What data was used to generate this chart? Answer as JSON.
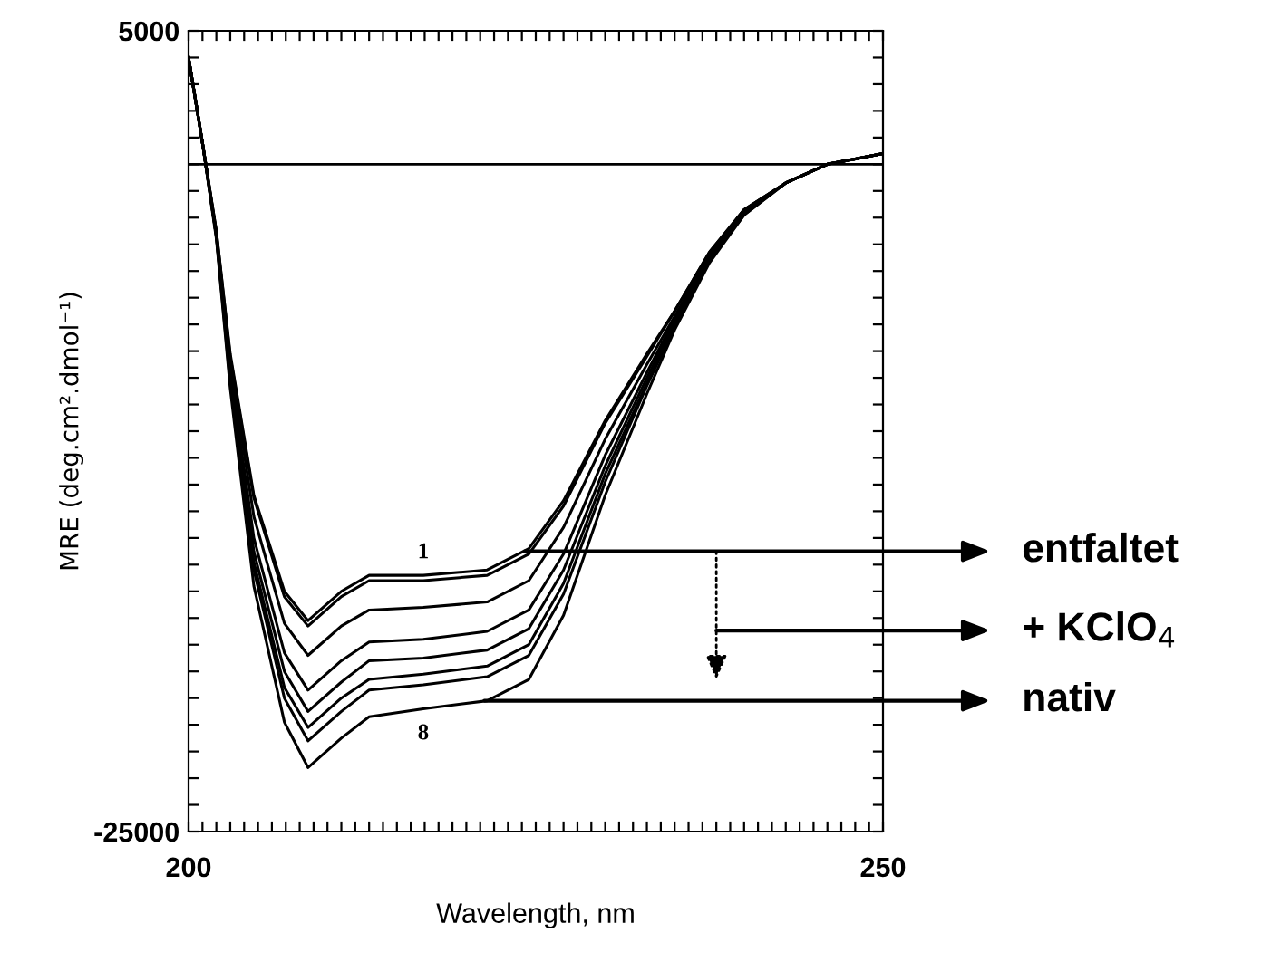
{
  "chart_data": {
    "type": "line",
    "xlabel": "Wavelength, nm",
    "ylabel": "MRE (deg.cm².dmol⁻¹)",
    "x": [
      200,
      201,
      202,
      203,
      204.7,
      206.9,
      208.6,
      211,
      213,
      216.9,
      221.5,
      224.5,
      227,
      230,
      233,
      235,
      237.5,
      240,
      243,
      246,
      248,
      250
    ],
    "series": [
      {
        "color": "#000000",
        "values": [
          4000,
          800,
          -2500,
          -7100,
          -12400,
          -16000,
          -17100,
          -16000,
          -15400,
          -15400,
          -15200,
          -14400,
          -12600,
          -9600,
          -7100,
          -5500,
          -3300,
          -1700,
          -700,
          0,
          200,
          400
        ]
      },
      {
        "color": "#000000",
        "values": [
          4000,
          800,
          -2500,
          -7200,
          -12500,
          -16200,
          -17300,
          -16200,
          -15600,
          -15600,
          -15400,
          -14600,
          -12800,
          -9700,
          -7200,
          -5500,
          -3300,
          -1700,
          -700,
          0,
          200,
          400
        ]
      },
      {
        "color": "#000000",
        "values": [
          4000,
          800,
          -2600,
          -7400,
          -13200,
          -17200,
          -18400,
          -17300,
          -16700,
          -16600,
          -16400,
          -15600,
          -13600,
          -10300,
          -7500,
          -5700,
          -3400,
          -1700,
          -700,
          0,
          200,
          400
        ]
      },
      {
        "color": "#000000",
        "values": [
          4000,
          800,
          -2600,
          -7700,
          -14000,
          -18300,
          -19700,
          -18600,
          -17900,
          -17800,
          -17500,
          -16700,
          -14600,
          -10900,
          -7800,
          -5800,
          -3500,
          -1800,
          -700,
          0,
          200,
          400
        ]
      },
      {
        "color": "#000000",
        "values": [
          4000,
          800,
          -2700,
          -7900,
          -14500,
          -19000,
          -20500,
          -19400,
          -18600,
          -18500,
          -18200,
          -17400,
          -15200,
          -11300,
          -8000,
          -5900,
          -3500,
          -1800,
          -700,
          0,
          200,
          400
        ]
      },
      {
        "color": "#000000",
        "values": [
          4000,
          800,
          -2700,
          -8000,
          -14900,
          -19600,
          -21100,
          -20000,
          -19300,
          -19100,
          -18800,
          -18000,
          -15700,
          -11600,
          -8200,
          -6000,
          -3600,
          -1800,
          -700,
          0,
          200,
          400
        ]
      },
      {
        "color": "#000000",
        "values": [
          4000,
          800,
          -2700,
          -8200,
          -15200,
          -20000,
          -21600,
          -20500,
          -19700,
          -19500,
          -19200,
          -18400,
          -16100,
          -11900,
          -8300,
          -6100,
          -3600,
          -1900,
          -700,
          0,
          200,
          400
        ]
      },
      {
        "color": "#000000",
        "values": [
          4000,
          800,
          -2800,
          -8400,
          -15800,
          -20900,
          -22600,
          -21500,
          -20700,
          -20400,
          -20100,
          -19300,
          -16900,
          -12400,
          -8600,
          -6200,
          -3700,
          -1900,
          -700,
          0,
          200,
          400
        ]
      }
    ],
    "xlim": [
      200,
      250
    ],
    "xticks": [
      200,
      {
        "value": 201,
        "label": null
      },
      {
        "value": 202,
        "label": null
      },
      {
        "value": 203,
        "label": null
      },
      {
        "value": 204,
        "label": null
      },
      {
        "value": 205,
        "label": null
      },
      {
        "value": 206,
        "label": null
      },
      {
        "value": 207,
        "label": null
      },
      {
        "value": 208,
        "label": null
      },
      {
        "value": 209,
        "label": null
      },
      {
        "value": 210,
        "label": null
      },
      {
        "value": 211,
        "label": null
      },
      {
        "value": 212,
        "label": null
      },
      {
        "value": 213,
        "label": null
      },
      {
        "value": 214,
        "label": null
      },
      {
        "value": 215,
        "label": null
      },
      {
        "value": 216,
        "label": null
      },
      {
        "value": 217,
        "label": null
      },
      {
        "value": 218,
        "label": null
      },
      {
        "value": 219,
        "label": null
      },
      {
        "value": 220,
        "label": null
      },
      {
        "value": 221,
        "label": null
      },
      {
        "value": 222,
        "label": null
      },
      {
        "value": 223,
        "label": null
      },
      {
        "value": 224,
        "label": null
      },
      {
        "value": 225,
        "label": null
      },
      {
        "value": 226,
        "label": null
      },
      {
        "value": 227,
        "label": null
      },
      {
        "value": 228,
        "label": null
      },
      {
        "value": 229,
        "label": null
      },
      {
        "value": 230,
        "label": null
      },
      {
        "value": 231,
        "label": null
      },
      {
        "value": 232,
        "label": null
      },
      {
        "value": 233,
        "label": null
      },
      {
        "value": 234,
        "label": null
      },
      {
        "value": 235,
        "label": null
      },
      {
        "value": 236,
        "label": null
      },
      {
        "value": 237,
        "label": null
      },
      {
        "value": 238,
        "label": null
      },
      {
        "value": 239,
        "label": null
      },
      {
        "value": 240,
        "label": null
      },
      {
        "value": 241,
        "label": null
      },
      {
        "value": 242,
        "label": null
      },
      {
        "value": 243,
        "label": null
      },
      {
        "value": 244,
        "label": null
      },
      {
        "value": 245,
        "label": null
      },
      {
        "value": 246,
        "label": null
      },
      {
        "value": 247,
        "label": null
      },
      {
        "value": 248,
        "label": null
      },
      {
        "value": 249,
        "label": null
      },
      250
    ],
    "ylim": [
      -25000,
      5000
    ],
    "yticks": [
      -25000,
      {
        "value": -24000,
        "label": null
      },
      {
        "value": -23000,
        "label": null
      },
      {
        "value": -22000,
        "label": null
      },
      {
        "value": -21000,
        "label": null
      },
      {
        "value": -20000,
        "label": null
      },
      {
        "value": -19000,
        "label": null
      },
      {
        "value": -18000,
        "label": null
      },
      {
        "value": -17000,
        "label": null
      },
      {
        "value": -16000,
        "label": null
      },
      {
        "value": -15000,
        "label": null
      },
      {
        "value": -14000,
        "label": null
      },
      {
        "value": -13000,
        "label": null
      },
      {
        "value": -12000,
        "label": null
      },
      {
        "value": -11000,
        "label": null
      },
      {
        "value": -10000,
        "label": null
      },
      {
        "value": -9000,
        "label": null
      },
      {
        "value": -8000,
        "label": null
      },
      {
        "value": -7000,
        "label": null
      },
      {
        "value": -6000,
        "label": null
      },
      {
        "value": -5000,
        "label": null
      },
      {
        "value": -4000,
        "label": null
      },
      {
        "value": -3000,
        "label": null
      },
      {
        "value": -2000,
        "label": null
      },
      {
        "value": -1000,
        "label": null
      },
      {
        "value": 0,
        "label": null
      },
      {
        "value": 1000,
        "label": null
      },
      {
        "value": 2000,
        "label": null
      },
      {
        "value": 3000,
        "label": null
      },
      {
        "value": 4000,
        "label": null
      },
      5000
    ],
    "ref_lines": [
      {
        "axis": "y",
        "value": 0,
        "color": "#000000"
      }
    ],
    "annotations": [
      "1",
      "8",
      {
        "text": "entfaltet",
        "x": 224.2,
        "y": -14500
      },
      "+ KClO$_{4}$",
      {
        "text": "nativ",
        "x": 221.3,
        "y": -20100
      }
    ],
    "grid": false,
    "legend": false,
    "marker": "none",
    "line_style": "solid"
  }
}
